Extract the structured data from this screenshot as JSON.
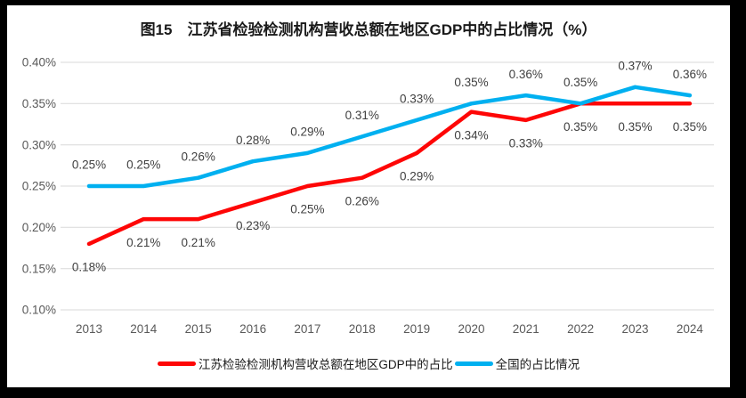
{
  "chart_data": {
    "type": "line",
    "title": "图15　江苏省检验检测机构营收总额在地区GDP中的占比情况（%）",
    "categories": [
      "2013",
      "2014",
      "2015",
      "2016",
      "2017",
      "2018",
      "2019",
      "2020",
      "2021",
      "2022",
      "2023",
      "2024"
    ],
    "series": [
      {
        "id": "jiangsu",
        "name": "江苏检验检测机构营收总额在地区GDP中的占比",
        "color": "#FE0606",
        "label_position": "below",
        "values": [
          0.18,
          0.21,
          0.21,
          0.23,
          0.25,
          0.26,
          0.29,
          0.34,
          0.33,
          0.35,
          0.35,
          0.35
        ],
        "labels": [
          "0.18%",
          "0.21%",
          "0.21%",
          "0.23%",
          "0.25%",
          "0.26%",
          "0.29%",
          "0.34%",
          "0.33%",
          "0.35%",
          "0.35%",
          "0.35%"
        ]
      },
      {
        "id": "national",
        "name": "全国的占比情况",
        "color": "#00B0F0",
        "label_position": "above",
        "values": [
          0.25,
          0.25,
          0.26,
          0.28,
          0.29,
          0.31,
          0.33,
          0.35,
          0.36,
          0.35,
          0.37,
          0.36
        ],
        "labels": [
          "0.25%",
          "0.25%",
          "0.26%",
          "0.28%",
          "0.29%",
          "0.31%",
          "0.33%",
          "0.35%",
          "0.36%",
          "0.35%",
          "0.37%",
          "0.36%"
        ]
      }
    ],
    "y_axis": {
      "min": 0.1,
      "max": 0.4,
      "step": 0.05,
      "ticks": [
        "0.40%",
        "0.35%",
        "0.30%",
        "0.25%",
        "0.20%",
        "0.15%",
        "0.10%"
      ]
    },
    "grid": true,
    "legend_position": "bottom",
    "colors": {
      "grid": "#D9D9D9",
      "axis_text": "#595959",
      "data_label_text": "#404040",
      "title_text": "#1A1A1A",
      "background": "#FFFFFF",
      "frame": "#000000"
    }
  }
}
